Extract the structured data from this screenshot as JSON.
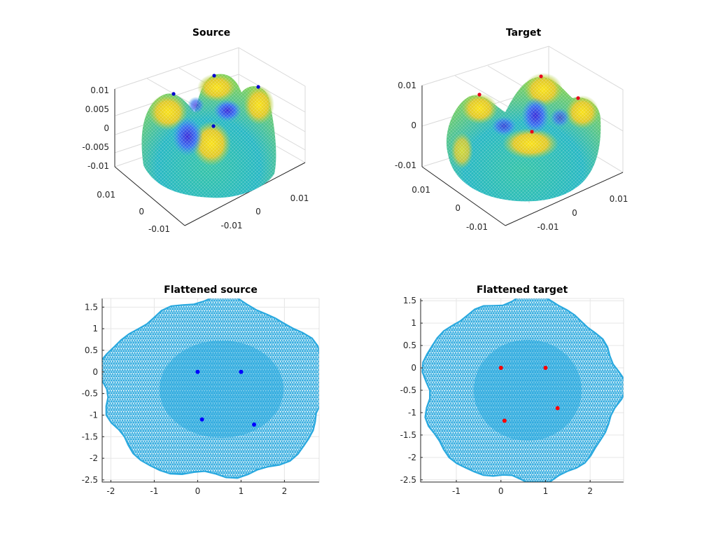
{
  "figure": {
    "panels_3d": [
      {
        "title": "Source",
        "z_ticks": [
          "0.01",
          "0.005",
          "0",
          "-0.005",
          "-0.01"
        ],
        "y_ticks": [
          "0.01",
          "0",
          "-0.01"
        ],
        "x_ticks": [
          "-0.01",
          "0",
          "0.01"
        ],
        "landmark_color": "#0000cd"
      },
      {
        "title": "Target",
        "z_ticks": [
          "0.01",
          "0",
          "-0.01"
        ],
        "y_ticks": [
          "0.01",
          "0",
          "-0.01"
        ],
        "x_ticks": [
          "-0.01",
          "0",
          "0.01"
        ],
        "landmark_color": "#e8001c"
      }
    ]
  },
  "chart_data": [
    {
      "type": "scatter",
      "title": "Flattened source",
      "xlim": [
        -2.2,
        2.8
      ],
      "ylim": [
        -2.55,
        1.7
      ],
      "x_ticks": [
        -2,
        -1,
        0,
        1,
        2
      ],
      "y_ticks": [
        1.5,
        1,
        0.5,
        0,
        -0.5,
        -1,
        -1.5,
        -2,
        -2.5
      ],
      "grid": true,
      "mesh_color": "#2aa9df",
      "marker_color": "#0000ff",
      "points": [
        [
          0,
          0
        ],
        [
          1,
          0
        ],
        [
          0.1,
          -1.1
        ],
        [
          1.3,
          -1.22
        ]
      ]
    },
    {
      "type": "scatter",
      "title": "Flattened target",
      "xlim": [
        -1.8,
        2.75
      ],
      "ylim": [
        -2.55,
        1.55
      ],
      "x_ticks": [
        -1,
        0,
        1,
        2
      ],
      "y_ticks": [
        1.5,
        1,
        0.5,
        0,
        -0.5,
        -1,
        -1.5,
        -2,
        -2.5
      ],
      "grid": true,
      "mesh_color": "#2aa9df",
      "marker_color": "#ff0000",
      "points": [
        [
          0,
          0
        ],
        [
          1,
          0
        ],
        [
          1.27,
          -0.9
        ],
        [
          0.08,
          -1.18
        ]
      ]
    }
  ]
}
